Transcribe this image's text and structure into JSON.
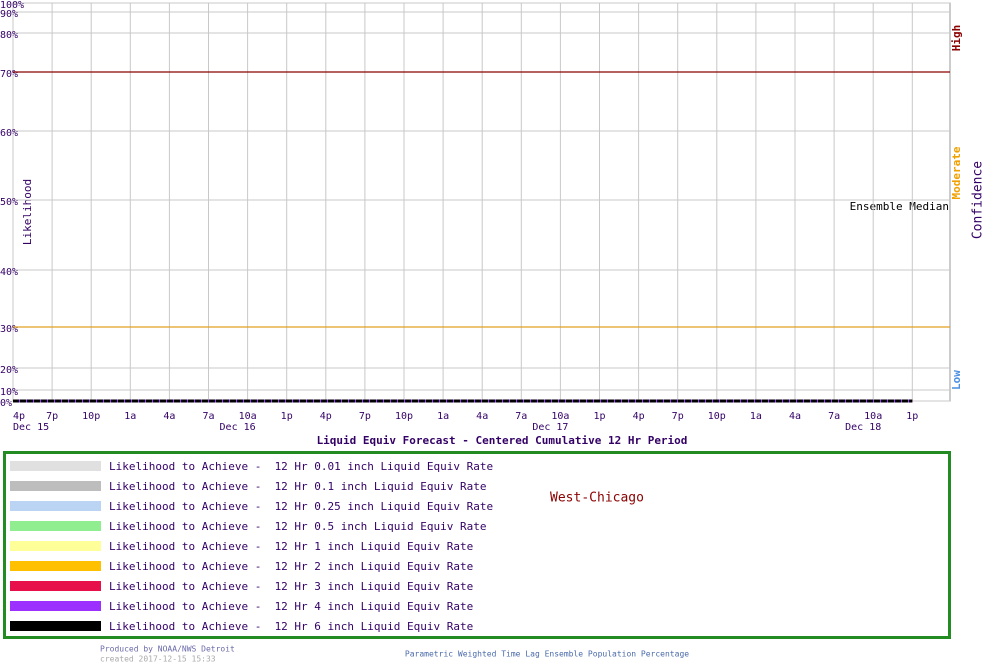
{
  "chart_data": {
    "type": "line",
    "xlabel": "Liquid Equiv Forecast - Centered Cumulative 12 Hr Period",
    "ylabel": "Likelihood",
    "right_axis_title": "Confidence",
    "confidence_labels": {
      "high": "High",
      "moderate": "Moderate",
      "low": "Low"
    },
    "annotation": "Ensemble Median",
    "location": "West-Chicago",
    "credit": "Produced by NOAA/NWS Detroit",
    "created": "created 2017-12-15 15:33",
    "footer": "Parametric Weighted Time Lag Ensemble Population Percentage",
    "categories": [
      "4p",
      "7p",
      "10p",
      "1a",
      "4a",
      "7a",
      "10a",
      "1p",
      "4p",
      "7p",
      "10p",
      "1a",
      "4a",
      "7a",
      "10a",
      "1p",
      "4p",
      "7p",
      "10p",
      "1a",
      "4a",
      "7a",
      "10a",
      "1p"
    ],
    "dates": [
      "Dec 15",
      null,
      null,
      null,
      null,
      null,
      "Dec 16",
      null,
      null,
      null,
      null,
      null,
      null,
      null,
      "Dec 17",
      null,
      null,
      null,
      null,
      null,
      null,
      null,
      "Dec 18",
      null
    ],
    "ylim": [
      0,
      100
    ],
    "yticks": [
      {
        "value": 0,
        "label": "0%"
      },
      {
        "value": 10,
        "label": "10%"
      },
      {
        "value": 20,
        "label": "20%"
      },
      {
        "value": 30,
        "label": "30%"
      },
      {
        "value": 40,
        "label": "40%"
      },
      {
        "value": 50,
        "label": "50%"
      },
      {
        "value": 60,
        "label": "60%"
      },
      {
        "value": 70,
        "label": "70%"
      },
      {
        "value": 80,
        "label": "80%"
      },
      {
        "value": 90,
        "label": "90%"
      },
      {
        "value": 100,
        "label": "100%"
      }
    ],
    "grid": true,
    "reference_lines": [
      {
        "value": 70,
        "color": "#8b0000"
      },
      {
        "value": 30,
        "color": "#e0a020"
      }
    ],
    "series": [
      {
        "name": "Likelihood to Achieve -  12 Hr 0.01 inch Liquid Equiv Rate",
        "color": "#e0e0e0",
        "values": [
          0,
          0,
          0,
          0,
          0,
          0,
          0,
          0,
          0,
          0,
          0,
          0,
          0,
          0,
          0,
          0,
          0,
          0,
          0,
          0,
          0,
          0,
          0,
          0
        ]
      },
      {
        "name": "Likelihood to Achieve -  12 Hr 0.1 inch Liquid Equiv Rate",
        "color": "#bdbdbd",
        "values": [
          0,
          0,
          0,
          0,
          0,
          0,
          0,
          0,
          0,
          0,
          0,
          0,
          0,
          0,
          0,
          0,
          0,
          0,
          0,
          0,
          0,
          0,
          0,
          0
        ]
      },
      {
        "name": "Likelihood to Achieve -  12 Hr 0.25 inch Liquid Equiv Rate",
        "color": "#bcd4f4",
        "values": [
          0,
          0,
          0,
          0,
          0,
          0,
          0,
          0,
          0,
          0,
          0,
          0,
          0,
          0,
          0,
          0,
          0,
          0,
          0,
          0,
          0,
          0,
          0,
          0
        ]
      },
      {
        "name": "Likelihood to Achieve -  12 Hr 0.5 inch Liquid Equiv Rate",
        "color": "#90ee90",
        "values": [
          0,
          0,
          0,
          0,
          0,
          0,
          0,
          0,
          0,
          0,
          0,
          0,
          0,
          0,
          0,
          0,
          0,
          0,
          0,
          0,
          0,
          0,
          0,
          0
        ]
      },
      {
        "name": "Likelihood to Achieve -  12 Hr 1 inch Liquid Equiv Rate",
        "color": "#ffff99",
        "values": [
          0,
          0,
          0,
          0,
          0,
          0,
          0,
          0,
          0,
          0,
          0,
          0,
          0,
          0,
          0,
          0,
          0,
          0,
          0,
          0,
          0,
          0,
          0,
          0
        ]
      },
      {
        "name": "Likelihood to Achieve -  12 Hr 2 inch Liquid Equiv Rate",
        "color": "#ffc000",
        "values": [
          0,
          0,
          0,
          0,
          0,
          0,
          0,
          0,
          0,
          0,
          0,
          0,
          0,
          0,
          0,
          0,
          0,
          0,
          0,
          0,
          0,
          0,
          0,
          0
        ]
      },
      {
        "name": "Likelihood to Achieve -  12 Hr 3 inch Liquid Equiv Rate",
        "color": "#e8104a",
        "values": [
          0,
          0,
          0,
          0,
          0,
          0,
          0,
          0,
          0,
          0,
          0,
          0,
          0,
          0,
          0,
          0,
          0,
          0,
          0,
          0,
          0,
          0,
          0,
          0
        ]
      },
      {
        "name": "Likelihood to Achieve -  12 Hr 4 inch Liquid Equiv Rate",
        "color": "#9b30ff",
        "values": [
          0,
          0,
          0,
          0,
          0,
          0,
          0,
          0,
          0,
          0,
          0,
          0,
          0,
          0,
          0,
          0,
          0,
          0,
          0,
          0,
          0,
          0,
          0,
          0
        ]
      },
      {
        "name": "Likelihood to Achieve -  12 Hr 6 inch Liquid Equiv Rate",
        "color": "#000000",
        "values": [
          0,
          0,
          0,
          0,
          0,
          0,
          0,
          0,
          0,
          0,
          0,
          0,
          0,
          0,
          0,
          0,
          0,
          0,
          0,
          0,
          0,
          0,
          0,
          0
        ]
      }
    ]
  }
}
